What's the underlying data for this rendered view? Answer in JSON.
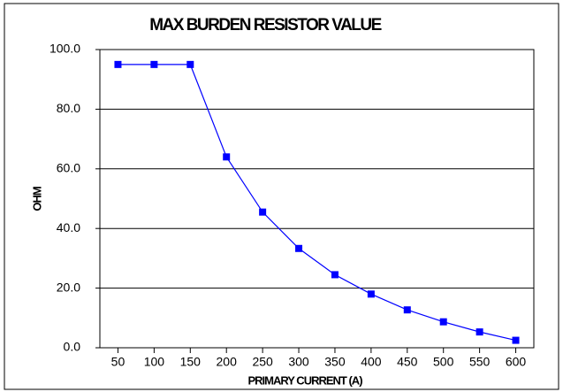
{
  "chart_data": {
    "type": "line",
    "title": "MAX BURDEN RESISTOR VALUE",
    "x_label": "PRIMARY CURRENT (A)",
    "y_label": "OHM",
    "x": [
      50,
      100,
      150,
      200,
      250,
      300,
      350,
      400,
      450,
      500,
      550,
      600
    ],
    "series": [
      {
        "name": "OHM",
        "color": "#0000ff",
        "values": [
          95,
          95,
          95,
          64,
          45.5,
          33.3,
          24.5,
          18,
          12.7,
          8.7,
          5.3,
          2.5
        ]
      }
    ],
    "xlim": [
      25,
      625
    ],
    "xticks": [
      50,
      100,
      150,
      200,
      250,
      300,
      350,
      400,
      450,
      500,
      550,
      600
    ],
    "ylim": [
      0,
      100
    ],
    "yticks": [
      {
        "value": 0,
        "label": "0.0"
      },
      {
        "value": 20,
        "label": "20.0"
      },
      {
        "value": 40,
        "label": "40.0"
      },
      {
        "value": 60,
        "label": "60.0"
      },
      {
        "value": 80,
        "label": "80.0"
      },
      {
        "value": 100,
        "label": "100.0"
      }
    ],
    "grid": true,
    "legend": false
  }
}
